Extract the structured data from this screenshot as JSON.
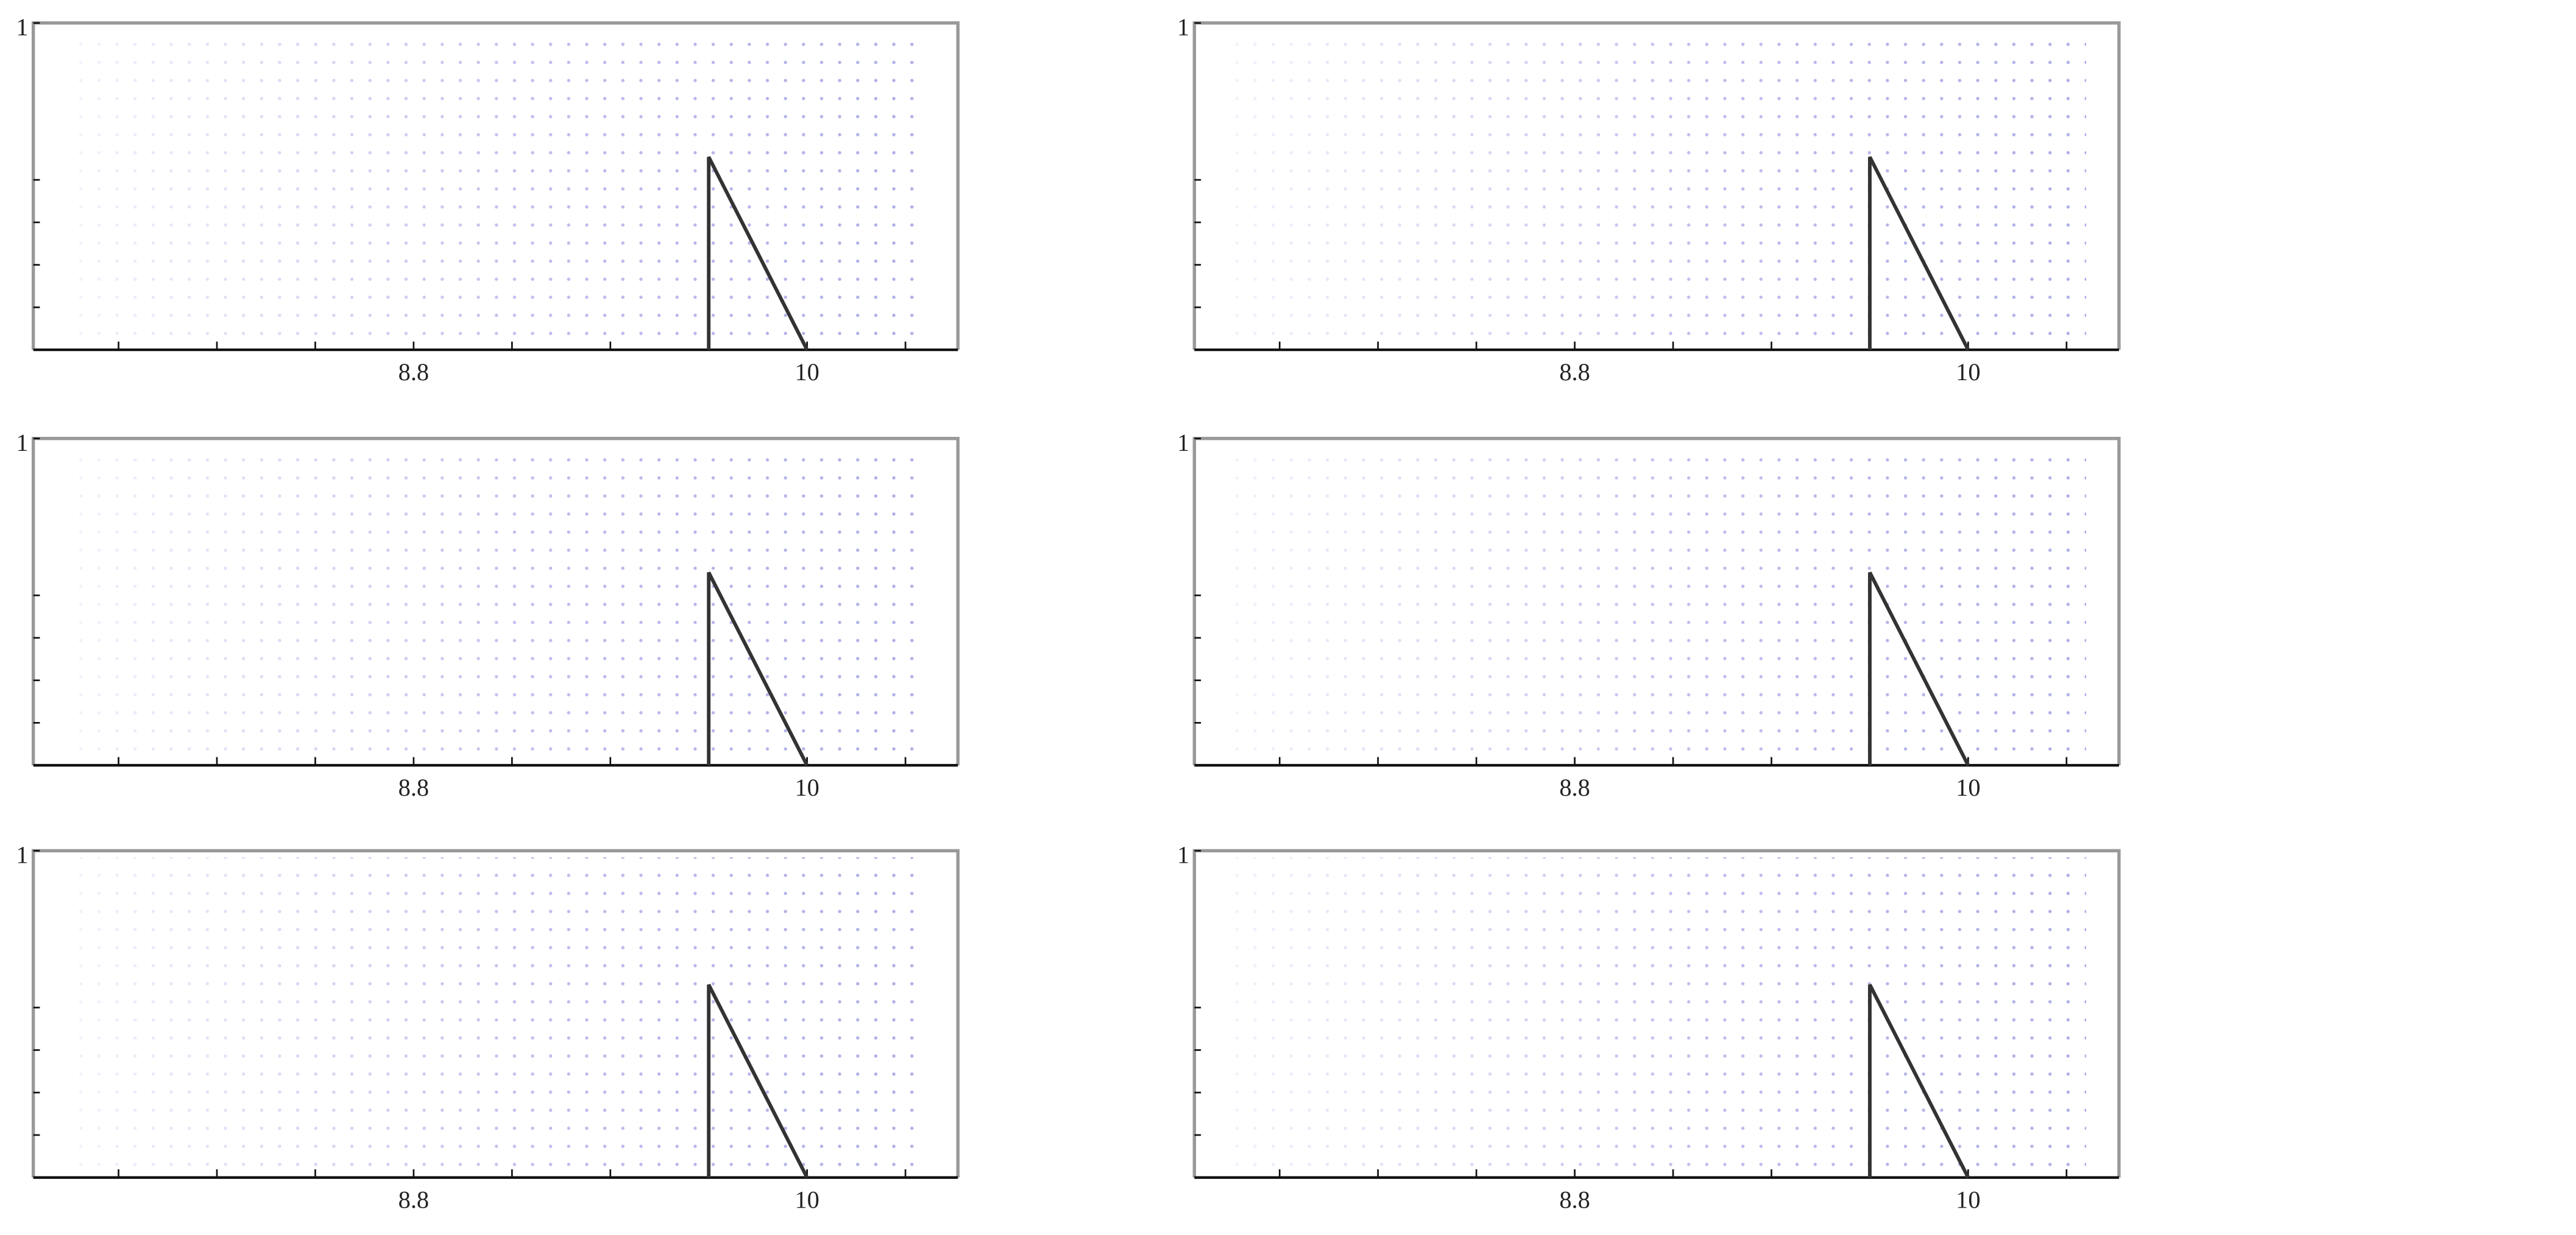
{
  "chart_data": [
    {
      "type": "quiver",
      "xlim": [
        7.64,
        10.46
      ],
      "ylim": [
        0,
        1
      ],
      "xticks": [
        {
          "value": 8.8,
          "label": "8.8"
        },
        10
      ],
      "xminor": [
        7.9,
        8.2,
        8.5,
        9.1,
        9.4,
        9.7,
        10.3
      ],
      "yticks": [
        1
      ],
      "yminor": [
        0.13,
        0.26,
        0.39,
        0.52
      ],
      "obstacle": {
        "x": [
          9.7,
          9.7,
          10
        ],
        "y": [
          0,
          0.59,
          0
        ]
      }
    },
    {
      "type": "quiver",
      "xlim": [
        7.64,
        10.46
      ],
      "ylim": [
        0,
        1
      ],
      "xticks": [
        {
          "value": 8.8,
          "label": "8.8"
        },
        10
      ],
      "xminor": [
        7.9,
        8.2,
        8.5,
        9.1,
        9.4,
        9.7,
        10.3
      ],
      "yticks": [
        1
      ],
      "yminor": [
        0.13,
        0.26,
        0.39,
        0.52
      ],
      "obstacle": {
        "x": [
          9.7,
          9.7,
          10
        ],
        "y": [
          0,
          0.59,
          0
        ]
      }
    },
    {
      "type": "quiver",
      "xlim": [
        7.64,
        10.46
      ],
      "ylim": [
        0,
        1
      ],
      "xticks": [
        {
          "value": 8.8,
          "label": "8.8"
        },
        10
      ],
      "xminor": [
        7.9,
        8.2,
        8.5,
        9.1,
        9.4,
        9.7,
        10.3
      ],
      "yticks": [
        1
      ],
      "yminor": [
        0.13,
        0.26,
        0.39,
        0.52
      ],
      "obstacle": {
        "x": [
          9.7,
          9.7,
          10
        ],
        "y": [
          0,
          0.59,
          0
        ]
      }
    },
    {
      "type": "quiver",
      "xlim": [
        7.64,
        10.46
      ],
      "ylim": [
        0,
        1
      ],
      "xticks": [
        {
          "value": 8.8,
          "label": "8.8"
        },
        10
      ],
      "xminor": [
        7.9,
        8.2,
        8.5,
        9.1,
        9.4,
        9.7,
        10.3
      ],
      "yticks": [
        1
      ],
      "yminor": [
        0.13,
        0.26,
        0.39,
        0.52
      ],
      "obstacle": {
        "x": [
          9.7,
          9.7,
          10
        ],
        "y": [
          0,
          0.59,
          0
        ]
      }
    },
    {
      "type": "quiver",
      "xlim": [
        7.64,
        10.46
      ],
      "ylim": [
        0,
        1
      ],
      "xticks": [
        {
          "value": 8.8,
          "label": "8.8"
        },
        10
      ],
      "xminor": [
        7.9,
        8.2,
        8.5,
        9.1,
        9.4,
        9.7,
        10.3
      ],
      "yticks": [
        1
      ],
      "yminor": [
        0.13,
        0.26,
        0.39,
        0.52
      ],
      "obstacle": {
        "x": [
          9.7,
          9.7,
          10
        ],
        "y": [
          0,
          0.59,
          0
        ]
      }
    },
    {
      "type": "quiver",
      "xlim": [
        7.64,
        10.46
      ],
      "ylim": [
        0,
        1
      ],
      "xticks": [
        {
          "value": 8.8,
          "label": "8.8"
        },
        10
      ],
      "xminor": [
        7.9,
        8.2,
        8.5,
        9.1,
        9.4,
        9.7,
        10.3
      ],
      "yticks": [
        1
      ],
      "yminor": [
        0.13,
        0.26,
        0.39,
        0.52
      ],
      "obstacle": {
        "x": [
          9.7,
          9.7,
          10
        ],
        "y": [
          0,
          0.59,
          0
        ]
      }
    }
  ]
}
